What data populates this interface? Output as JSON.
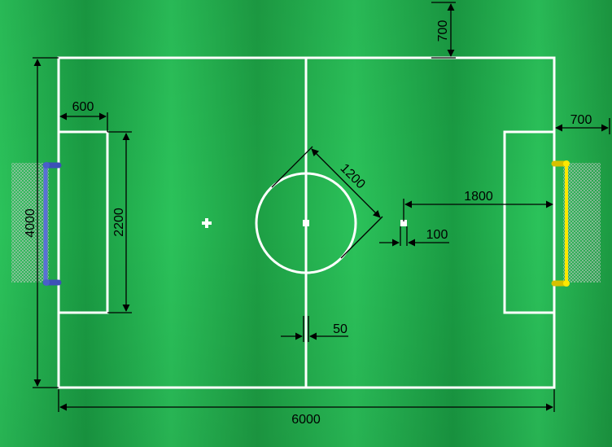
{
  "field": {
    "colors": {
      "grass_light": "#2bc25a",
      "grass_dark": "#169a3e",
      "line": "#ffffff",
      "blue_goal": "#5a6fd6",
      "yellow_goal": "#ffe800",
      "dimension": "#000000"
    }
  },
  "dimensions": {
    "top_margin": "700",
    "penalty_depth": "600",
    "side_margin": "700",
    "circle_diameter": "1200",
    "penalty_mark_distance": "1800",
    "mark_size": "100",
    "field_width": "4000",
    "penalty_width": "2200",
    "line_width": "50",
    "field_length": "6000"
  },
  "goals": {
    "left_icon": "blue-goal",
    "right_icon": "yellow-goal"
  }
}
